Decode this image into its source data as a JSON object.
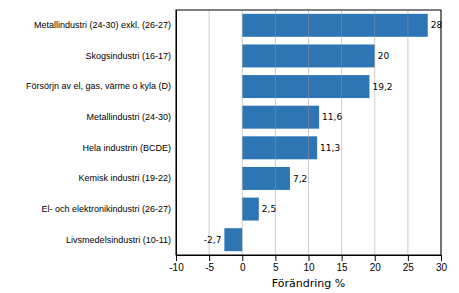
{
  "chart_data": {
    "type": "bar",
    "orientation": "horizontal",
    "categories": [
      "Livsmedelsindustri (10-11)",
      "El- och elektronikindustri (26-27)",
      "Kemisk industri (19-22)",
      "Hela industrin (BCDE)",
      "Metallindustri (24-30)",
      "Försörjn av el, gas, värme o kyla (D)",
      "Skogsindustri (16-17)",
      "Metallindustri (24-30) exkl. (26-27)"
    ],
    "values": [
      -2.7,
      2.5,
      7.2,
      11.3,
      11.6,
      19.2,
      20,
      28
    ],
    "value_labels": [
      "-2,7",
      "2,5",
      "7,2",
      "11,3",
      "11,6",
      "19,2",
      "20",
      "28"
    ],
    "color": "#2E75B6",
    "xlabel": "Förändring %",
    "xlim": [
      -10,
      30
    ],
    "xticks": [
      -10,
      -5,
      0,
      5,
      10,
      15,
      20,
      25,
      30
    ],
    "grid": true,
    "data_labels": true
  }
}
